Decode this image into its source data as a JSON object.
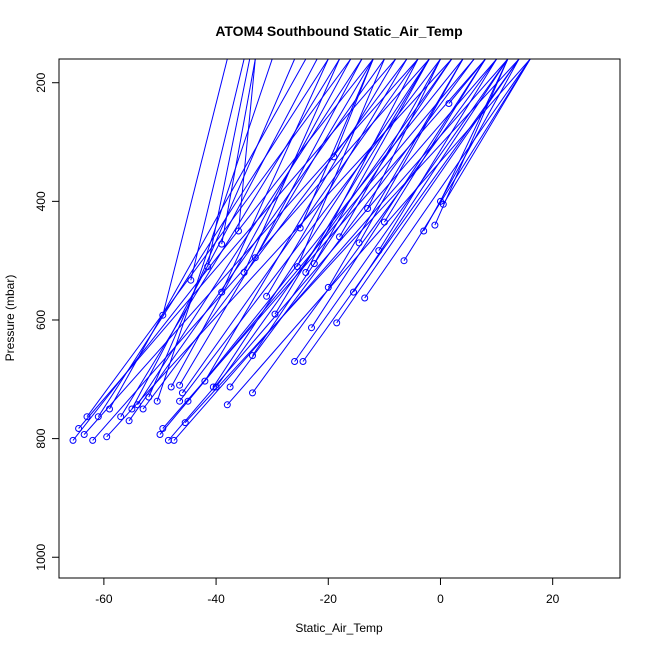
{
  "chart_data": {
    "type": "line",
    "title": "ATOM4 Southbound Static_Air_Temp",
    "xlabel": "Static_Air_Temp",
    "ylabel": "Pressure (mbar)",
    "xlim": [
      -68,
      32
    ],
    "ylim": [
      1035,
      160
    ],
    "y_reversed": true,
    "xticks": [
      -60,
      -40,
      -20,
      0,
      20
    ],
    "yticks": [
      200,
      400,
      600,
      800,
      1000
    ],
    "xtick_labels": [
      "-60",
      "-40",
      "-20",
      "0",
      "20"
    ],
    "ytick_labels": [
      "200",
      "400",
      "600",
      "800",
      "1000"
    ],
    "line_color": "#0000ff",
    "marker": "open-circle-at-bottom",
    "grid": false,
    "legend": "none",
    "series": [
      {
        "values": [
          [
            -65.5,
            803
          ],
          [
            -12,
            160
          ]
        ]
      },
      {
        "values": [
          [
            -64.5,
            783
          ],
          [
            -8,
            160
          ]
        ]
      },
      {
        "values": [
          [
            -63.5,
            793
          ],
          [
            -4,
            160
          ]
        ]
      },
      {
        "values": [
          [
            -63,
            763
          ],
          [
            -16,
            160
          ]
        ]
      },
      {
        "values": [
          [
            -62,
            803
          ],
          [
            -2,
            160
          ]
        ]
      },
      {
        "values": [
          [
            -61,
            763
          ],
          [
            -20,
            160
          ]
        ]
      },
      {
        "values": [
          [
            -59.5,
            797
          ],
          [
            2,
            160
          ]
        ]
      },
      {
        "values": [
          [
            -59,
            750
          ],
          [
            -24,
            160
          ]
        ]
      },
      {
        "values": [
          [
            -57,
            763
          ],
          [
            -18,
            160
          ]
        ]
      },
      {
        "values": [
          [
            -55.5,
            770
          ],
          [
            -10,
            160
          ]
        ]
      },
      {
        "values": [
          [
            -55,
            750
          ],
          [
            -22,
            160
          ]
        ]
      },
      {
        "values": [
          [
            -54,
            743
          ],
          [
            -14,
            160
          ]
        ]
      },
      {
        "values": [
          [
            -53,
            750
          ],
          [
            -6,
            160
          ]
        ]
      },
      {
        "values": [
          [
            -52,
            730
          ],
          [
            -26,
            160
          ]
        ]
      },
      {
        "values": [
          [
            -50.5,
            737
          ],
          [
            -30,
            160
          ]
        ]
      },
      {
        "values": [
          [
            -50,
            793
          ],
          [
            6,
            160
          ]
        ]
      },
      {
        "values": [
          [
            -49.5,
            783
          ],
          [
            8,
            160
          ]
        ]
      },
      {
        "values": [
          [
            -49.5,
            592
          ],
          [
            -38,
            160
          ]
        ]
      },
      {
        "values": [
          [
            -48.5,
            803
          ],
          [
            10,
            160
          ]
        ]
      },
      {
        "values": [
          [
            -48,
            713
          ],
          [
            -16,
            160
          ]
        ]
      },
      {
        "values": [
          [
            -47.5,
            803
          ],
          [
            12,
            160
          ]
        ]
      },
      {
        "values": [
          [
            -46.5,
            710
          ],
          [
            -12,
            160
          ]
        ]
      },
      {
        "values": [
          [
            -46.5,
            737
          ],
          [
            0,
            160
          ]
        ]
      },
      {
        "values": [
          [
            -46,
            723
          ],
          [
            -4,
            160
          ]
        ]
      },
      {
        "values": [
          [
            -45.5,
            773
          ],
          [
            14,
            160
          ]
        ]
      },
      {
        "values": [
          [
            -45,
            737
          ],
          [
            4,
            160
          ]
        ]
      },
      {
        "values": [
          [
            -44.5,
            533
          ],
          [
            -35,
            160
          ]
        ]
      },
      {
        "values": [
          [
            -42,
            703
          ],
          [
            -8,
            160
          ]
        ]
      },
      {
        "values": [
          [
            -41.5,
            510
          ],
          [
            -34,
            160
          ]
        ]
      },
      {
        "values": [
          [
            -40.5,
            713
          ],
          [
            -2,
            160
          ]
        ]
      },
      {
        "values": [
          [
            -40,
            713
          ],
          [
            2,
            160
          ]
        ]
      },
      {
        "values": [
          [
            -39,
            553
          ],
          [
            -20,
            160
          ]
        ]
      },
      {
        "values": [
          [
            -39,
            472
          ],
          [
            -33,
            160
          ]
        ]
      },
      {
        "values": [
          [
            -38,
            743
          ],
          [
            16,
            160
          ]
        ]
      },
      {
        "values": [
          [
            -37.5,
            713
          ],
          [
            6,
            160
          ]
        ]
      },
      {
        "values": [
          [
            -36,
            450
          ],
          [
            -33,
            160
          ]
        ]
      },
      {
        "values": [
          [
            -35,
            520
          ],
          [
            -18,
            160
          ]
        ]
      },
      {
        "values": [
          [
            -33.5,
            723
          ],
          [
            10,
            160
          ]
        ]
      },
      {
        "values": [
          [
            -33.5,
            660
          ],
          [
            2,
            160
          ]
        ]
      },
      {
        "values": [
          [
            -33,
            495
          ],
          [
            -14,
            160
          ]
        ]
      },
      {
        "values": [
          [
            -31,
            560
          ],
          [
            -6,
            160
          ]
        ]
      },
      {
        "values": [
          [
            -29.5,
            590
          ],
          [
            -2,
            160
          ]
        ]
      },
      {
        "values": [
          [
            -26,
            670
          ],
          [
            12,
            160
          ]
        ]
      },
      {
        "values": [
          [
            -25.5,
            510
          ],
          [
            -10,
            160
          ]
        ]
      },
      {
        "values": [
          [
            -25,
            445
          ],
          [
            -12,
            160
          ]
        ]
      },
      {
        "values": [
          [
            -24.5,
            670
          ],
          [
            14,
            160
          ]
        ]
      },
      {
        "values": [
          [
            -24,
            520
          ],
          [
            -4,
            160
          ]
        ]
      },
      {
        "values": [
          [
            -23,
            613
          ],
          [
            8,
            160
          ]
        ]
      },
      {
        "values": [
          [
            -22.5,
            505
          ],
          [
            -2,
            160
          ]
        ]
      },
      {
        "values": [
          [
            -20,
            545
          ],
          [
            4,
            160
          ]
        ]
      },
      {
        "values": [
          [
            -19,
            325
          ],
          [
            -12,
            160
          ]
        ]
      },
      {
        "values": [
          [
            -18,
            460
          ],
          [
            0,
            160
          ]
        ]
      },
      {
        "values": [
          [
            -18.5,
            605
          ],
          [
            14,
            160
          ]
        ]
      },
      {
        "values": [
          [
            -15.5,
            553
          ],
          [
            12,
            160
          ]
        ]
      },
      {
        "values": [
          [
            -14.5,
            470
          ],
          [
            4,
            160
          ]
        ]
      },
      {
        "values": [
          [
            -13.5,
            563
          ],
          [
            16,
            160
          ]
        ]
      },
      {
        "values": [
          [
            -13,
            412
          ],
          [
            0,
            160
          ]
        ]
      },
      {
        "values": [
          [
            -11,
            483
          ],
          [
            10,
            160
          ]
        ]
      },
      {
        "values": [
          [
            -10,
            435
          ],
          [
            8,
            160
          ]
        ]
      },
      {
        "values": [
          [
            -6.5,
            500
          ],
          [
            16,
            160
          ]
        ]
      },
      {
        "values": [
          [
            -3,
            450
          ],
          [
            14,
            160
          ]
        ]
      },
      {
        "values": [
          [
            -1,
            440
          ],
          [
            12,
            160
          ]
        ]
      },
      {
        "values": [
          [
            0,
            400
          ],
          [
            12,
            160
          ]
        ]
      },
      {
        "values": [
          [
            0.5,
            405
          ],
          [
            16,
            160
          ]
        ]
      },
      {
        "values": [
          [
            1.5,
            235
          ],
          [
            8,
            160
          ]
        ]
      }
    ]
  }
}
